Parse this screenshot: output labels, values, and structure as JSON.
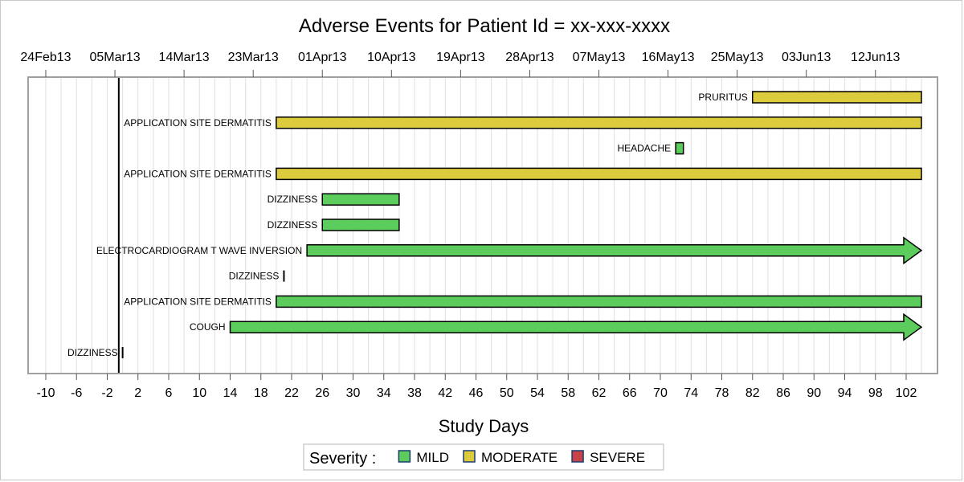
{
  "chart_data": {
    "type": "bar",
    "subtype": "gantt",
    "title": "Adverse Events for Patient Id = xx-xxx-xxxx",
    "xlabel": "Study Days",
    "xlim": [
      -12,
      106
    ],
    "x_ticks": [
      -10,
      -6,
      -2,
      2,
      6,
      10,
      14,
      18,
      22,
      26,
      30,
      34,
      38,
      42,
      46,
      50,
      54,
      58,
      62,
      66,
      70,
      74,
      78,
      82,
      86,
      90,
      94,
      98,
      102
    ],
    "x_tick_labels": [
      "-10",
      "-6",
      "-2",
      "2",
      "6",
      "10",
      "14",
      "18",
      "22",
      "26",
      "30",
      "34",
      "38",
      "42",
      "46",
      "50",
      "54",
      "58",
      "62",
      "66",
      "70",
      "74",
      "78",
      "82",
      "86",
      "90",
      "94",
      "98",
      "102"
    ],
    "date_ticks": [
      {
        "day": -10,
        "label": "24Feb13"
      },
      {
        "day": -1,
        "label": "05Mar13"
      },
      {
        "day": 8,
        "label": "14Mar13"
      },
      {
        "day": 17,
        "label": "23Mar13"
      },
      {
        "day": 26,
        "label": "01Apr13"
      },
      {
        "day": 35,
        "label": "10Apr13"
      },
      {
        "day": 44,
        "label": "19Apr13"
      },
      {
        "day": 53,
        "label": "28Apr13"
      },
      {
        "day": 62,
        "label": "07May13"
      },
      {
        "day": 71,
        "label": "16May13"
      },
      {
        "day": 80,
        "label": "25May13"
      },
      {
        "day": 89,
        "label": "03Jun13"
      },
      {
        "day": 98,
        "label": "12Jun13"
      }
    ],
    "reference_line_day": -0.5,
    "grid": true,
    "legend": {
      "title": "Severity :",
      "placement": "bottom",
      "entries": [
        {
          "name": "MILD",
          "color": "#5ccc5c"
        },
        {
          "name": "MODERATE",
          "color": "#dccb3d"
        },
        {
          "name": "SEVERE",
          "color": "#c8424a"
        }
      ]
    },
    "events": [
      {
        "label": "PRURITUS",
        "start": 82,
        "end": 104,
        "severity": "MODERATE",
        "arrow": false
      },
      {
        "label": "APPLICATION SITE DERMATITIS",
        "start": 20,
        "end": 104,
        "severity": "MODERATE",
        "arrow": false
      },
      {
        "label": "HEADACHE",
        "start": 72,
        "end": 73,
        "severity": "MILD",
        "arrow": false
      },
      {
        "label": "APPLICATION SITE DERMATITIS",
        "start": 20,
        "end": 104,
        "severity": "MODERATE",
        "arrow": false
      },
      {
        "label": "DIZZINESS",
        "start": 26,
        "end": 36,
        "severity": "MILD",
        "arrow": false
      },
      {
        "label": "DIZZINESS",
        "start": 26,
        "end": 36,
        "severity": "MILD",
        "arrow": false
      },
      {
        "label": "ELECTROCARDIOGRAM T WAVE INVERSION",
        "start": 24,
        "end": 104,
        "severity": "MILD",
        "arrow": true
      },
      {
        "label": "DIZZINESS",
        "start": 21,
        "end": 21,
        "severity": "MILD",
        "arrow": false
      },
      {
        "label": "APPLICATION SITE DERMATITIS",
        "start": 20,
        "end": 104,
        "severity": "MILD",
        "arrow": false
      },
      {
        "label": "COUGH",
        "start": 14,
        "end": 104,
        "severity": "MILD",
        "arrow": true
      },
      {
        "label": "DIZZINESS",
        "start": 0,
        "end": 0,
        "severity": "MILD",
        "arrow": false
      }
    ]
  }
}
